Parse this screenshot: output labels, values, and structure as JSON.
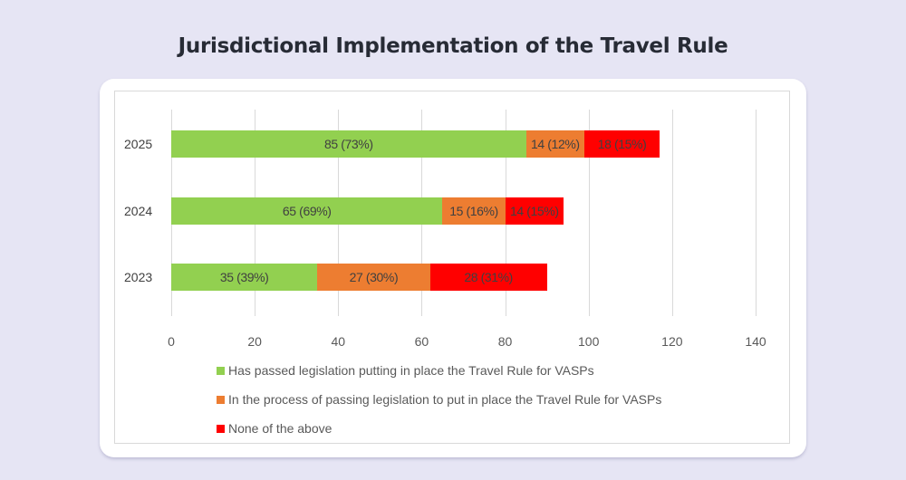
{
  "page": {
    "title": "Jurisdictional Implementation of the Travel Rule",
    "background": "#e6e5f4"
  },
  "colors": {
    "passed": "#92d050",
    "in_process": "#ed7d31",
    "none": "#ff0000"
  },
  "chart_data": {
    "type": "bar",
    "orientation": "horizontal",
    "stacked": true,
    "title": "Jurisdictional Implementation of the Travel Rule",
    "xlabel": "",
    "ylabel": "",
    "xlim": [
      0,
      140
    ],
    "x_ticks": [
      "0",
      "20",
      "40",
      "60",
      "80",
      "100",
      "120",
      "140"
    ],
    "grid": true,
    "legend_position": "bottom",
    "categories": [
      "2025",
      "2024",
      "2023"
    ],
    "series": [
      {
        "name": "Has passed legislation putting in place the Travel Rule for VASPs",
        "color": "#92d050",
        "values": [
          85,
          65,
          35
        ],
        "labels": [
          "85 (73%)",
          "65 (69%)",
          "35 (39%)"
        ]
      },
      {
        "name": "In the process of passing legislation to put in place the Travel Rule for VASPs",
        "color": "#ed7d31",
        "values": [
          14,
          15,
          27
        ],
        "labels": [
          "14 (12%)",
          "15 (16%)",
          "27 (30%)"
        ]
      },
      {
        "name": "None of the above",
        "color": "#ff0000",
        "values": [
          18,
          14,
          28
        ],
        "labels": [
          "18 (15%)",
          "14 (15%)",
          "28 (31%)"
        ]
      }
    ]
  },
  "legend": [
    {
      "label": "Has passed legislation putting in place the Travel Rule for VASPs",
      "color": "#92d050"
    },
    {
      "label": "In the process of passing legislation to put in place the Travel Rule for VASPs",
      "color": "#ed7d31"
    },
    {
      "label": "None of the above",
      "color": "#ff0000"
    }
  ]
}
